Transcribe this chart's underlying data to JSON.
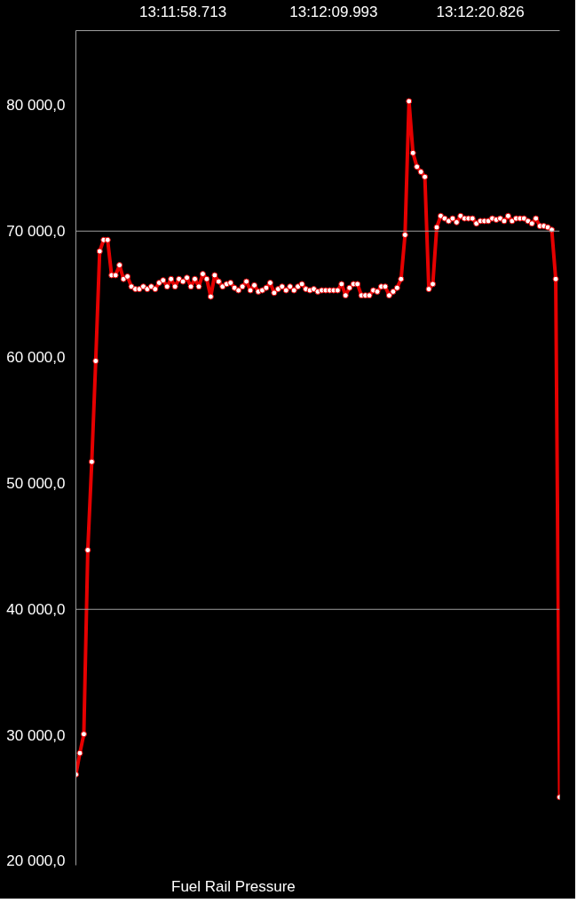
{
  "chart_data": {
    "type": "line",
    "categories": [
      null,
      null,
      null,
      null,
      null,
      null,
      null,
      null,
      null,
      null,
      null,
      null,
      null,
      null,
      null,
      null,
      null,
      null,
      null,
      null,
      null,
      null,
      null,
      null,
      null,
      null,
      null,
      "13:11:58.713",
      null,
      null,
      null,
      null,
      null,
      null,
      null,
      null,
      null,
      null,
      null,
      null,
      null,
      null,
      null,
      null,
      null,
      null,
      null,
      null,
      null,
      null,
      null,
      null,
      null,
      null,
      null,
      null,
      null,
      null,
      null,
      null,
      null,
      null,
      null,
      null,
      null,
      "13:12:09.993",
      null,
      null,
      null,
      null,
      null,
      null,
      null,
      null,
      null,
      null,
      null,
      null,
      null,
      null,
      null,
      null,
      null,
      null,
      null,
      null,
      null,
      null,
      null,
      null,
      null,
      null,
      null,
      null,
      null,
      null,
      null,
      null,
      null,
      null,
      null,
      null,
      "13:12:20.826",
      null,
      null,
      null,
      null,
      null,
      null,
      null,
      null,
      null,
      null,
      null,
      null,
      null,
      null,
      null,
      null,
      null,
      null,
      null,
      null
    ],
    "series": [
      {
        "name": "Fuel Rail Pressure",
        "color": "#e50000",
        "values": [
          26900,
          28600,
          30100,
          44700,
          51700,
          59700,
          68400,
          69300,
          69300,
          66500,
          66500,
          67300,
          66200,
          66400,
          65600,
          65400,
          65400,
          65600,
          65400,
          65600,
          65400,
          65900,
          66100,
          65600,
          66200,
          65600,
          66200,
          66000,
          66300,
          65600,
          66200,
          65600,
          66600,
          66200,
          64800,
          66500,
          66000,
          65600,
          65800,
          65900,
          65500,
          65300,
          65600,
          66000,
          65300,
          65700,
          65200,
          65300,
          65500,
          65900,
          65100,
          65400,
          65600,
          65300,
          65600,
          65300,
          65600,
          65800,
          65400,
          65300,
          65400,
          65200,
          65300,
          65300,
          65300,
          65300,
          65300,
          65800,
          64900,
          65500,
          65800,
          65800,
          64900,
          64900,
          64900,
          65300,
          65200,
          65600,
          65600,
          64900,
          65200,
          65500,
          66200,
          69700,
          80300,
          76200,
          75100,
          74700,
          74300,
          65400,
          65800,
          70300,
          71200,
          71000,
          70800,
          71000,
          70700,
          71200,
          71000,
          71000,
          71000,
          70600,
          70800,
          70800,
          70800,
          71000,
          70900,
          71000,
          70800,
          71200,
          70800,
          71000,
          71000,
          71000,
          70800,
          70600,
          71000,
          70400,
          70400,
          70300,
          70100,
          66200,
          25100
        ]
      }
    ],
    "ylim": [
      19700,
      85900
    ],
    "yticks": [
      {
        "value": 20000,
        "label": "20 000,0"
      },
      {
        "value": 30000,
        "label": "30 000,0"
      },
      {
        "value": 40000,
        "label": "40 000,0"
      },
      {
        "value": 50000,
        "label": "50 000,0"
      },
      {
        "value": 60000,
        "label": "60 000,0"
      },
      {
        "value": 70000,
        "label": "70 000,0"
      },
      {
        "value": 80000,
        "label": "80 000,0"
      }
    ],
    "ref_lines": [
      {
        "axis": "y",
        "value": 40000,
        "color": "#9e9e9e"
      },
      {
        "axis": "y",
        "value": 70000,
        "color": "#9e9e9e"
      }
    ],
    "grid": false,
    "legend": "bottom left",
    "marker": "circle",
    "line_style": "solid"
  }
}
